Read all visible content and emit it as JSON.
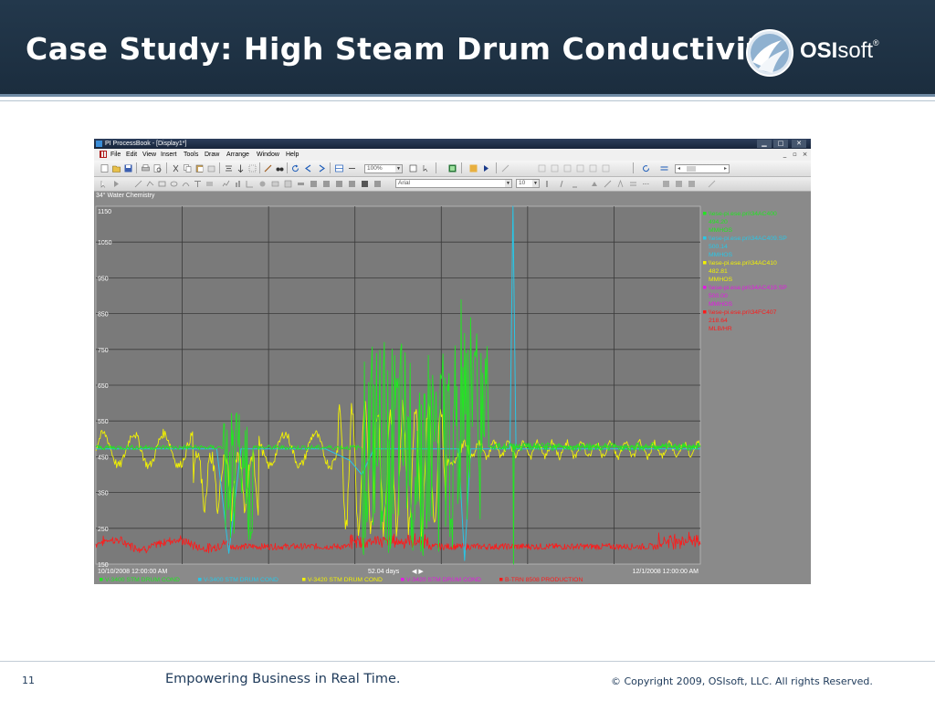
{
  "slide": {
    "title": "Case Study: High Steam Drum Conductivity",
    "logo_text_bold": "OSI",
    "logo_text_light": "soft",
    "logo_mark": "®",
    "footer_page": "11",
    "footer_tagline": "Empowering Business in Real Time.",
    "footer_copyright": "© Copyright 2009, OSIsoft, LLC.  All rights Reserved."
  },
  "window": {
    "title": "PI ProcessBook - [Display1*]",
    "menu": [
      "File",
      "Edit",
      "View",
      "Insert",
      "Tools",
      "Draw",
      "Arrange",
      "Window",
      "Help"
    ],
    "zoom": "100%",
    "font_name": "Arial",
    "font_size": "10"
  },
  "display": {
    "title": "34° Water Chemistry",
    "start_time": "10/10/2008 12:00:00 AM",
    "end_time": "12/1/2008 12:00:00 AM",
    "time_span": "52.04 days"
  },
  "colors": {
    "header_bg": "#1f3347",
    "plot_bg": "#7a7a7a",
    "green": "#22e622",
    "cyan": "#29c6e6",
    "yellow": "#f2f200",
    "magenta": "#e21ae2",
    "red": "#ff1a1a"
  },
  "chart_data": {
    "type": "line",
    "ylim": [
      150,
      1150
    ],
    "y_ticks": [
      "1150",
      "1050",
      "950",
      "850",
      "750",
      "650",
      "550",
      "450",
      "350",
      "250",
      "150"
    ],
    "grid": true,
    "legend_items": [
      {
        "tag": "\\\\ese-pi.ese.pri\\34AC400",
        "value": "494.20",
        "units": "MMHOS",
        "color": "#22e622"
      },
      {
        "tag": "\\\\ese-pi.ese.pri\\34AC409.SP",
        "value": "500.14",
        "units": "MMHOS",
        "color": "#29c6e6"
      },
      {
        "tag": "\\\\ese-pi.ese.pri\\34AC410",
        "value": "482.81",
        "units": "MMHOS",
        "color": "#f2f200"
      },
      {
        "tag": "\\\\ese-pi.ese.pri\\34AC419.SP",
        "value": "500.00",
        "units": "MMHOS",
        "color": "#e21ae2"
      },
      {
        "tag": "\\\\ese-pi.ese.pri\\34FC407",
        "value": "218.64",
        "units": "MLB/HR",
        "color": "#ff1a1a"
      }
    ],
    "series_labels": [
      {
        "name": "V-3400 STM DRUM COND",
        "color": "#22e622"
      },
      {
        "name": "V-3400 STM DRUM COND",
        "color": "#29c6e6"
      },
      {
        "name": "V-3420 STM DRUM COND",
        "color": "#f2f200"
      },
      {
        "name": "V-3420 STM DRUM COND",
        "color": "#e21ae2"
      },
      {
        "name": "B-TRN 8508 PRODUCTION",
        "color": "#ff1a1a"
      }
    ]
  }
}
